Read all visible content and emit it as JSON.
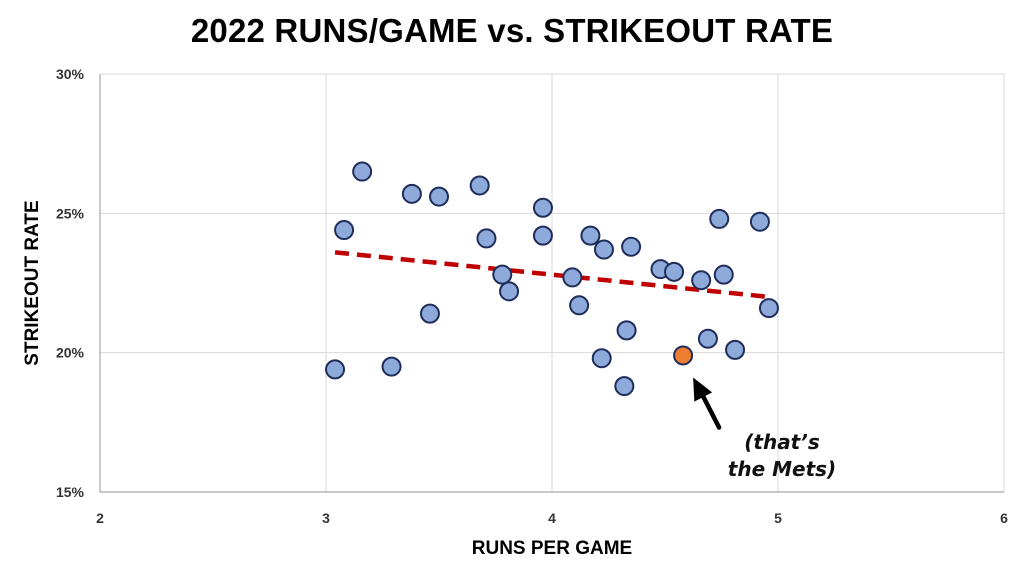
{
  "chart_data": {
    "type": "scatter",
    "title": "2022 RUNS/GAME vs. STRIKEOUT RATE",
    "xlabel": "RUNS PER GAME",
    "ylabel": "STRIKEOUT RATE",
    "xlim": [
      2,
      6
    ],
    "ylim": [
      0.15,
      0.3
    ],
    "xticks": [
      2,
      3,
      4,
      5,
      6
    ],
    "xtick_labels": [
      "2",
      "3",
      "4",
      "5",
      "6"
    ],
    "yticks": [
      0.15,
      0.2,
      0.25,
      0.3
    ],
    "ytick_labels": [
      "15%",
      "20%",
      "25%",
      "30%"
    ],
    "grid": true,
    "series": [
      {
        "color": "#8eaadb",
        "stroke": "#1f2d5a",
        "points": [
          [
            3.04,
            0.194
          ],
          [
            3.08,
            0.244
          ],
          [
            3.16,
            0.265
          ],
          [
            3.29,
            0.195
          ],
          [
            3.38,
            0.257
          ],
          [
            3.46,
            0.214
          ],
          [
            3.5,
            0.256
          ],
          [
            3.68,
            0.26
          ],
          [
            3.71,
            0.241
          ],
          [
            3.78,
            0.228
          ],
          [
            3.81,
            0.222
          ],
          [
            3.96,
            0.252
          ],
          [
            3.96,
            0.242
          ],
          [
            4.09,
            0.227
          ],
          [
            4.12,
            0.217
          ],
          [
            4.17,
            0.242
          ],
          [
            4.22,
            0.198
          ],
          [
            4.23,
            0.237
          ],
          [
            4.32,
            0.188
          ],
          [
            4.33,
            0.208
          ],
          [
            4.35,
            0.238
          ],
          [
            4.48,
            0.23
          ],
          [
            4.54,
            0.229
          ],
          [
            4.66,
            0.226
          ],
          [
            4.69,
            0.205
          ],
          [
            4.74,
            0.248
          ],
          [
            4.76,
            0.228
          ],
          [
            4.81,
            0.201
          ],
          [
            4.92,
            0.247
          ],
          [
            4.96,
            0.216
          ]
        ]
      },
      {
        "color": "#ed7d31",
        "stroke": "#1f2d5a",
        "points": [
          [
            4.58,
            0.199
          ]
        ]
      }
    ],
    "trendline": {
      "color": "#c00000",
      "style": "dashed",
      "x": [
        3.04,
        4.96
      ],
      "y": [
        0.236,
        0.22
      ]
    },
    "annotations": [
      {
        "text_lines": [
          "(that’s",
          "the Mets)"
        ],
        "points_to": [
          4.58,
          0.199
        ]
      }
    ]
  }
}
